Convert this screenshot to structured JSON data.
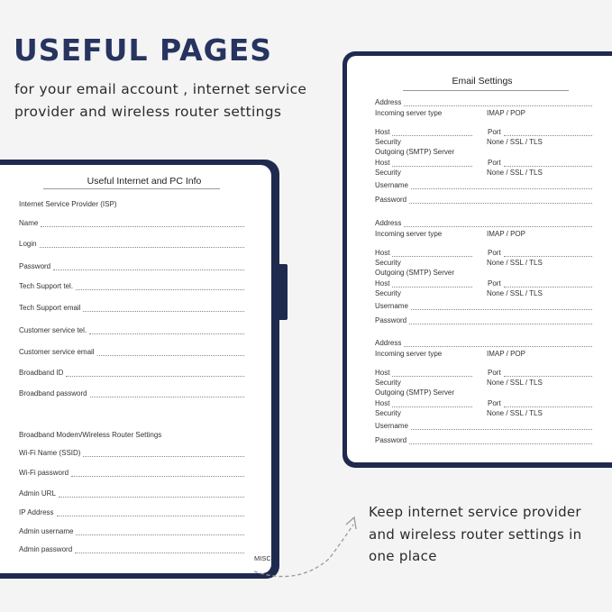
{
  "headline": "USEFUL PAGES",
  "subtitle": [
    "for your email account , internet service",
    "provider and wireless router settings"
  ],
  "caption": [
    "Keep internet service provider",
    "and wireless router settings in",
    "one place"
  ],
  "colors": {
    "navy": "#1f2a4f",
    "headline": "#26345f"
  },
  "left_page": {
    "title": "Useful Internet and PC Info",
    "isp_heading": "Internet Service Provider  (ISP)",
    "isp_fields": [
      "Name",
      "Login",
      "Password",
      "Tech Support tel.",
      "Tech Support email",
      "Customer service tel.",
      "Customer service email",
      "Broadband ID",
      "Broadband password"
    ],
    "router_heading": "Broadband Modem/Wireless Router Settings",
    "router_fields": [
      "Wi-Fi Name (SSID)",
      "Wi-Fi password",
      "Admin URL",
      "IP Address",
      "Admin username",
      "Admin password"
    ],
    "tab_label": "MISC"
  },
  "right_page": {
    "title": "Email Settings",
    "sections": [
      {
        "address": "Address",
        "incoming": "Incoming server type",
        "incoming_options": "IMAP  /  POP",
        "host": "Host",
        "port": "Port",
        "security": "Security",
        "security_options": "None  /  SSL  /  TLS",
        "outgoing": "Outgoing (SMTP) Server",
        "host2": "Host",
        "port2": "Port",
        "security2": "Security",
        "security_options2": "None  /  SSL  /  TLS",
        "username": "Username",
        "password": "Password"
      },
      {
        "address": "Address",
        "incoming": "Incoming server type",
        "incoming_options": "IMAP  /  POP",
        "host": "Host",
        "port": "Port",
        "security": "Security",
        "security_options": "None  /  SSL  /  TLS",
        "outgoing": "Outgoing (SMTP) Server",
        "host2": "Host",
        "port2": "Port",
        "security2": "Security",
        "security_options2": "None  /  SSL  /  TLS",
        "username": "Username",
        "password": "Password"
      },
      {
        "address": "Address",
        "incoming": "Incoming server type",
        "incoming_options": "IMAP  /  POP",
        "host": "Host",
        "port": "Port",
        "security": "Security",
        "security_options": "None  /  SSL  /  TLS",
        "outgoing": "Outgoing (SMTP) Server",
        "host2": "Host",
        "port2": "Port",
        "security2": "Security",
        "security_options2": "None  /  SSL  /  TLS",
        "username": "Username",
        "password": "Password"
      }
    ]
  }
}
